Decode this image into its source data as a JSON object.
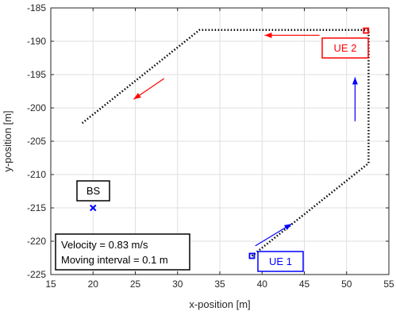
{
  "chart_data": {
    "type": "scatter",
    "xlabel": "x-position [m]",
    "ylabel": "y-position [m]",
    "xlim": [
      15,
      55
    ],
    "ylim": [
      -225,
      -185
    ],
    "xticks": [
      15,
      20,
      25,
      30,
      35,
      40,
      45,
      50,
      55
    ],
    "yticks": [
      -225,
      -220,
      -215,
      -210,
      -205,
      -200,
      -195,
      -190,
      -185
    ],
    "grid": true,
    "series": [
      {
        "name": "",
        "style": "dotted",
        "color": "#000000",
        "x": [
          38.8,
          52.6,
          52.6,
          52.6,
          32.6,
          18.6
        ],
        "y": [
          -222.2,
          -208.3,
          -188.3,
          -188.3,
          -188.3,
          -202.4
        ]
      }
    ],
    "markers": [
      {
        "label": "UE 1",
        "shape": "square",
        "color": "#0000ff",
        "x": 38.8,
        "y": -222.2
      },
      {
        "label": "UE 2",
        "shape": "square",
        "color": "#ff0000",
        "x": 52.3,
        "y": -188.4
      },
      {
        "label": "BS",
        "shape": "x",
        "color": "#0000ff",
        "x": 20,
        "y": -215
      }
    ],
    "arrows": [
      {
        "color": "#0000ff",
        "x1": 39.2,
        "y1": -220.7,
        "x2": 43.5,
        "y2": -217.4
      },
      {
        "color": "#0000ff",
        "x1": 51.0,
        "y1": -202.0,
        "x2": 51.0,
        "y2": -195.4
      },
      {
        "color": "#ff0000",
        "x1": 46.8,
        "y1": -189.1,
        "x2": 40.3,
        "y2": -189.1
      },
      {
        "color": "#ff0000",
        "x1": 28.4,
        "y1": -195.6,
        "x2": 24.8,
        "y2": -198.7
      }
    ],
    "annotations": [
      {
        "text": "UE 2",
        "color": "#ff0000"
      },
      {
        "text": "UE 1",
        "color": "#0000ff"
      },
      {
        "text": "BS",
        "color": "#000000"
      }
    ],
    "info_box": {
      "line1": "Velocity = 0.83 m/s",
      "line2": "Moving interval = 0.1 m"
    }
  }
}
